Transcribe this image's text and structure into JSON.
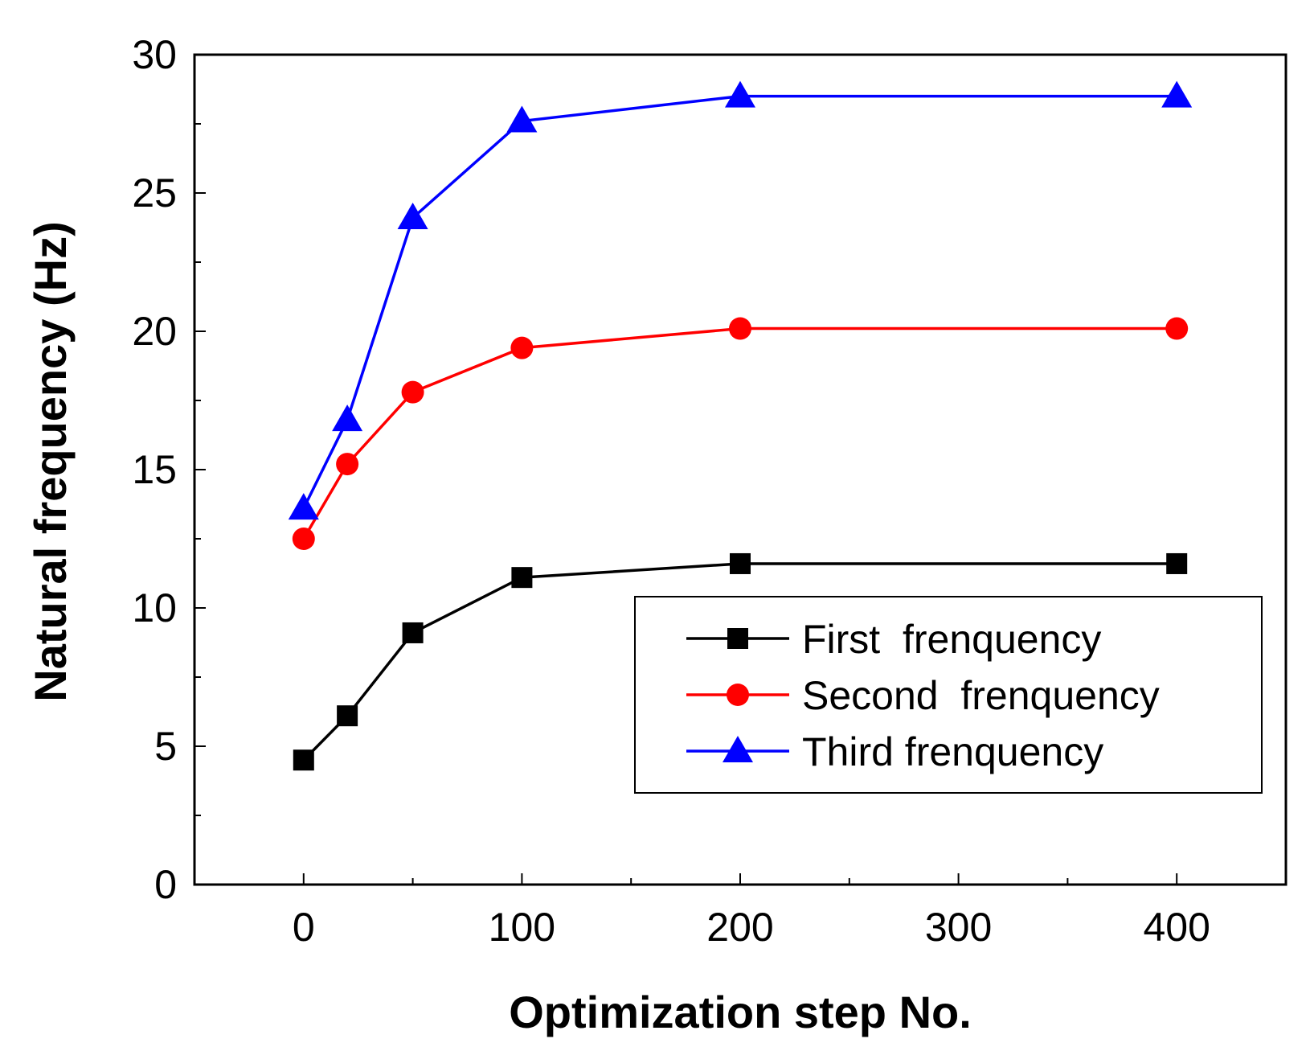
{
  "chart_data": {
    "type": "line",
    "title": "",
    "xlabel": "Optimization step No.",
    "ylabel": "Natural frequency (Hz)",
    "xlim": [
      -50,
      450
    ],
    "ylim": [
      0,
      30
    ],
    "xticks": [
      0,
      100,
      200,
      300,
      400
    ],
    "xtick_labels": [
      "0",
      "100",
      "200",
      "300",
      "400"
    ],
    "yticks": [
      0,
      5,
      10,
      15,
      20,
      25,
      30
    ],
    "ytick_labels": [
      "0",
      "5",
      "10",
      "15",
      "20",
      "25",
      "30"
    ],
    "grid": false,
    "legend_position": "lower-right",
    "x": [
      0,
      20,
      50,
      100,
      200,
      400
    ],
    "series": [
      {
        "name": "First  frenquency",
        "color": "#000000",
        "marker": "square",
        "values": [
          4.5,
          6.1,
          9.1,
          11.1,
          11.6,
          11.6
        ]
      },
      {
        "name": "Second  frenquency",
        "color": "#ff0000",
        "marker": "circle",
        "values": [
          12.5,
          15.2,
          17.8,
          19.4,
          20.1,
          20.1
        ]
      },
      {
        "name": "Third frenquency",
        "color": "#0000ff",
        "marker": "triangle",
        "values": [
          13.6,
          16.8,
          24.1,
          27.6,
          28.5,
          28.5
        ]
      }
    ]
  }
}
